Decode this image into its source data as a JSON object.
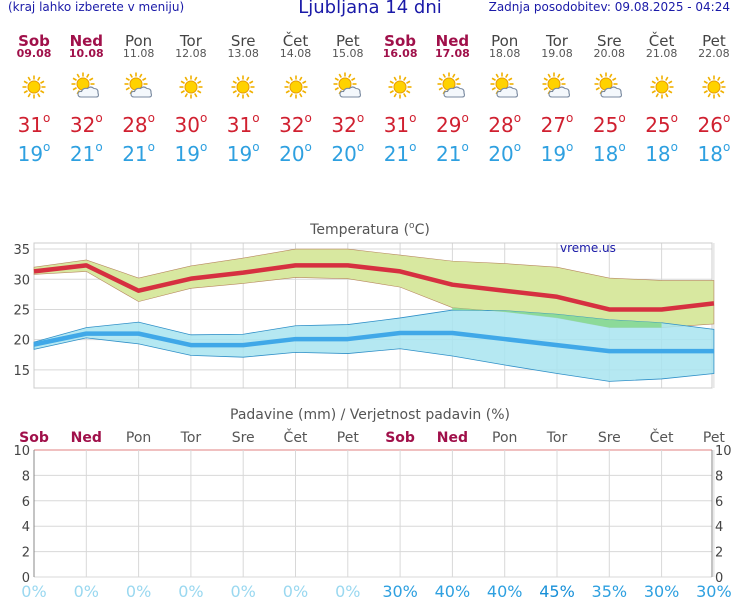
{
  "header": {
    "left": "(kraj lahko izberete v meniju)",
    "title": "Ljubljana 14 dni",
    "right": "Zadnja posodobitev: 09.08.2025 - 04:24"
  },
  "days": [
    {
      "name": "Sob",
      "date": "09.08",
      "weekend": true,
      "icon": "sun-icon",
      "max": "31",
      "min": "19"
    },
    {
      "name": "Ned",
      "date": "10.08",
      "weekend": true,
      "icon": "sun-cloud-icon",
      "max": "32",
      "min": "21"
    },
    {
      "name": "Pon",
      "date": "11.08",
      "weekend": false,
      "icon": "sun-cloud-icon",
      "max": "28",
      "min": "21"
    },
    {
      "name": "Tor",
      "date": "12.08",
      "weekend": false,
      "icon": "sun-icon",
      "max": "30",
      "min": "19"
    },
    {
      "name": "Sre",
      "date": "13.08",
      "weekend": false,
      "icon": "sun-icon",
      "max": "31",
      "min": "19"
    },
    {
      "name": "Čet",
      "date": "14.08",
      "weekend": false,
      "icon": "sun-icon",
      "max": "32",
      "min": "20"
    },
    {
      "name": "Pet",
      "date": "15.08",
      "weekend": false,
      "icon": "sun-cloud-icon",
      "max": "32",
      "min": "20"
    },
    {
      "name": "Sob",
      "date": "16.08",
      "weekend": true,
      "icon": "sun-icon",
      "max": "31",
      "min": "21"
    },
    {
      "name": "Ned",
      "date": "17.08",
      "weekend": true,
      "icon": "sun-cloud-icon",
      "max": "29",
      "min": "21"
    },
    {
      "name": "Pon",
      "date": "18.08",
      "weekend": false,
      "icon": "sun-cloud-icon",
      "max": "28",
      "min": "20"
    },
    {
      "name": "Tor",
      "date": "19.08",
      "weekend": false,
      "icon": "sun-cloud-icon",
      "max": "27",
      "min": "19"
    },
    {
      "name": "Sre",
      "date": "20.08",
      "weekend": false,
      "icon": "sun-cloud-icon",
      "max": "25",
      "min": "18"
    },
    {
      "name": "Čet",
      "date": "21.08",
      "weekend": false,
      "icon": "sun-icon",
      "max": "25",
      "min": "18"
    },
    {
      "name": "Pet",
      "date": "22.08",
      "weekend": false,
      "icon": "sun-icon",
      "max": "26",
      "min": "18"
    }
  ],
  "chart_data": [
    {
      "type": "area",
      "title": "Temperatura (°C)",
      "title_parts": [
        "Temperatura (",
        "o",
        "C)"
      ],
      "watermark": "vreme.us",
      "ylim": [
        12,
        36
      ],
      "yticks": [
        15,
        20,
        25,
        30,
        35
      ],
      "series": [
        {
          "name": "max",
          "color": "#d63040",
          "values": [
            31.3,
            32.3,
            28.1,
            30.1,
            31.1,
            32.3,
            32.3,
            31.3,
            29.1,
            28.1,
            27.1,
            25.0,
            25.0,
            26.0
          ]
        },
        {
          "name": "max_high",
          "color": "#d8e8a0",
          "values": [
            32.0,
            33.2,
            30.2,
            32.2,
            33.5,
            35.0,
            35.0,
            34.0,
            33.0,
            32.6,
            32.0,
            30.2,
            29.8,
            29.8
          ]
        },
        {
          "name": "max_low",
          "values": [
            30.8,
            31.3,
            26.3,
            28.5,
            29.3,
            30.3,
            30.1,
            28.7,
            25.3,
            24.6,
            23.6,
            22.0,
            22.0,
            22.6
          ]
        },
        {
          "name": "min",
          "color": "#40a8e8",
          "values": [
            19.2,
            21.0,
            21.0,
            19.1,
            19.1,
            20.1,
            20.1,
            21.1,
            21.1,
            20.1,
            19.1,
            18.1,
            18.1,
            18.1
          ]
        },
        {
          "name": "min_high",
          "color": "#a8e4f0",
          "values": [
            19.6,
            22.0,
            22.9,
            20.8,
            20.9,
            22.3,
            22.5,
            23.6,
            24.9,
            24.8,
            24.2,
            23.3,
            22.8,
            21.7
          ]
        },
        {
          "name": "min_low",
          "values": [
            18.4,
            20.3,
            19.3,
            17.4,
            17.1,
            17.9,
            17.7,
            18.5,
            17.3,
            15.8,
            14.4,
            13.1,
            13.5,
            14.4
          ]
        }
      ]
    },
    {
      "type": "bar",
      "title": "Padavine (mm) / Verjetnost padavin (%)",
      "ylim": [
        0,
        10
      ],
      "yticks": [
        0,
        2,
        4,
        6,
        8,
        10
      ],
      "values": [
        0,
        0,
        0,
        0,
        0,
        0,
        0,
        0,
        0,
        0,
        0,
        0,
        0,
        0
      ],
      "probability_labels": [
        "0%",
        "0%",
        "0%",
        "0%",
        "0%",
        "0%",
        "0%",
        "30%",
        "40%",
        "40%",
        "45%",
        "35%",
        "30%",
        "30%"
      ],
      "probability_colors": [
        "#9ad8f0",
        "#9ad8f0",
        "#9ad8f0",
        "#9ad8f0",
        "#9ad8f0",
        "#9ad8f0",
        "#9ad8f0",
        "#2ea0e0",
        "#2ea0e0",
        "#2ea0e0",
        "#1890d8",
        "#2ea0e0",
        "#2ea0e0",
        "#2ea0e0"
      ]
    }
  ],
  "colors": {
    "weekend": "#a0104a",
    "weekday": "#555555",
    "max": "#d02030",
    "min": "#2ea0e0"
  }
}
